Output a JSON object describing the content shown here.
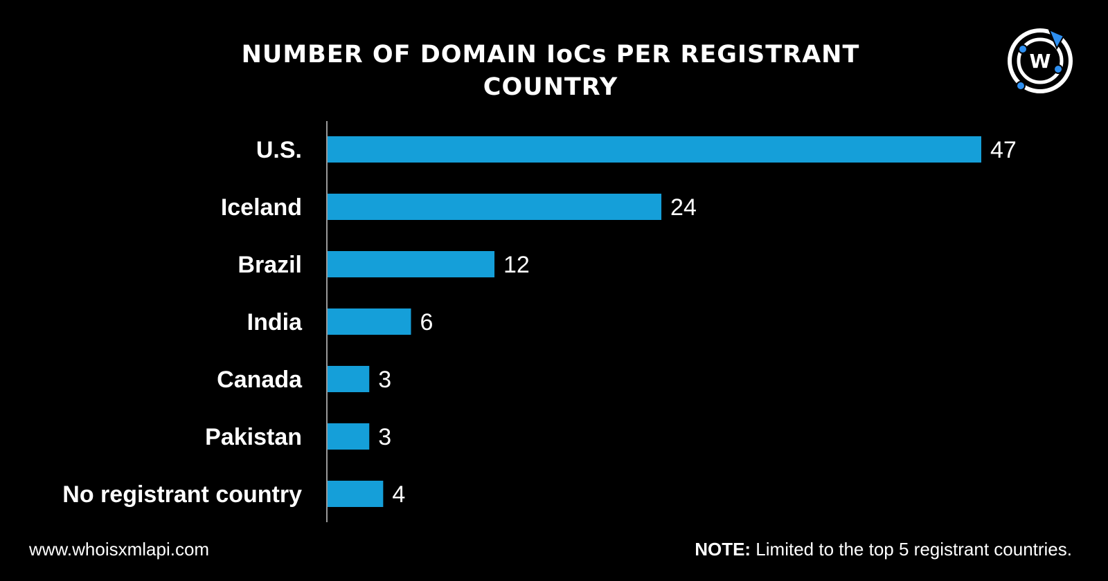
{
  "chart_data": {
    "type": "bar",
    "orientation": "horizontal",
    "title_lines": [
      "NUMBER OF DOMAIN IoCs PER REGISTRANT",
      "COUNTRY"
    ],
    "categories": [
      "U.S.",
      "Iceland",
      "Brazil",
      "India",
      "Canada",
      "Pakistan",
      "No registrant country"
    ],
    "values": [
      47,
      24,
      12,
      6,
      3,
      3,
      4
    ],
    "value_labels": [
      "47",
      "24",
      "12",
      "6",
      "3",
      "3",
      "4"
    ],
    "xlabel": "",
    "ylabel": "",
    "xlim": [
      0,
      47
    ],
    "grid": false,
    "legend": "none",
    "bar_color": "#159fd9"
  },
  "footer": {
    "website": "www.whoisxmlapi.com",
    "note_label": "NOTE:",
    "note_text": " Limited to the top 5 registrant countries."
  },
  "logo": {
    "icon": "whoisxmlapi-logo-icon",
    "letter": "W",
    "accent_color": "#2e8ff0"
  },
  "colors": {
    "background": "#000000",
    "text": "#ffffff",
    "axis": "#9a9a9a"
  }
}
